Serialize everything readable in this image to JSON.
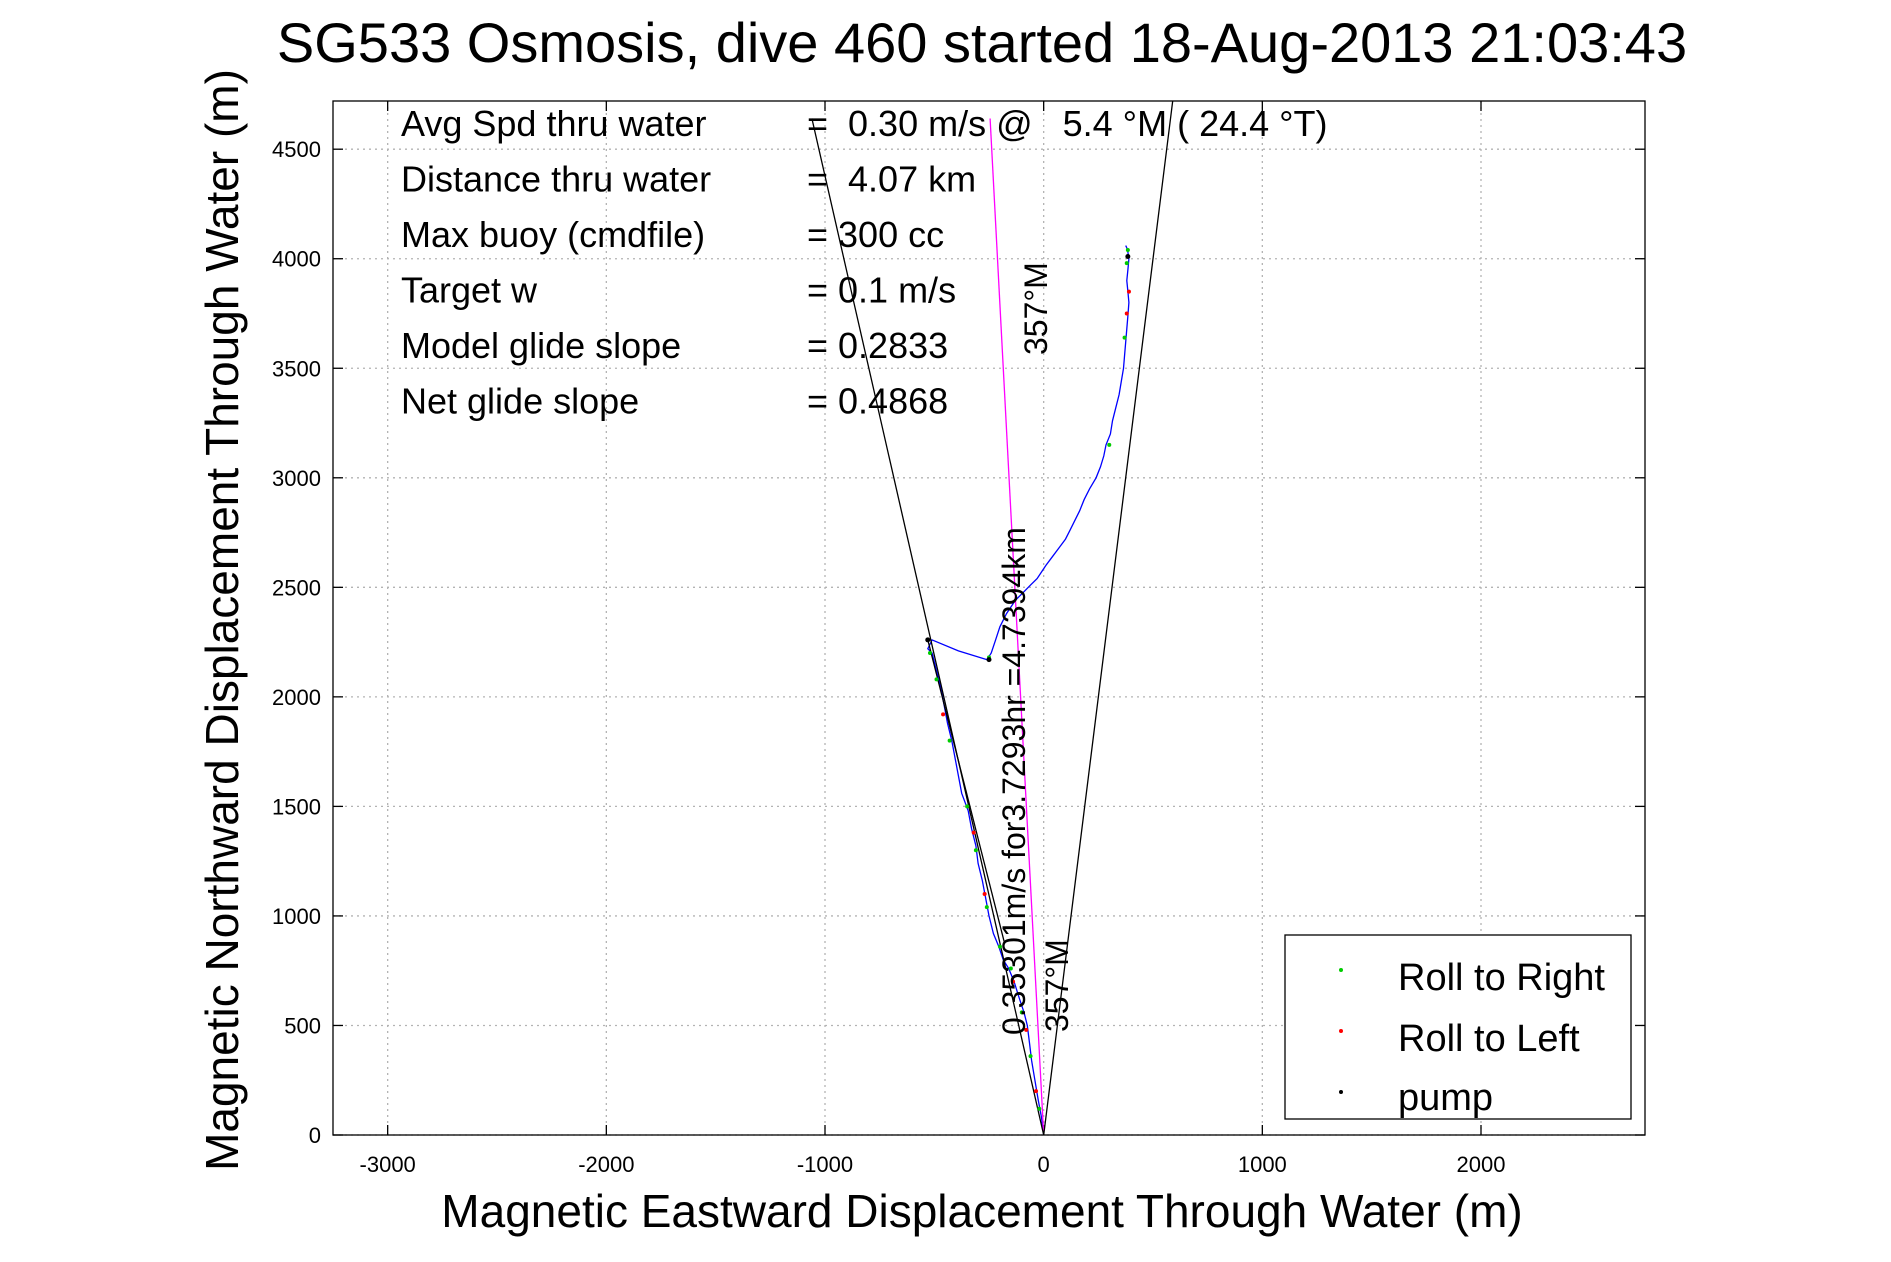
{
  "chart_data": {
    "type": "line",
    "title": "SG533 Osmosis, dive 460 started 18-Aug-2013 21:03:43",
    "xlabel": "Magnetic Eastward Displacement Through Water (m)",
    "ylabel": "Magnetic Northward Displacement Through Water (m)",
    "xlim": [
      -3250,
      2750
    ],
    "ylim": [
      0,
      4720
    ],
    "xticks": [
      -3000,
      -2000,
      -1000,
      0,
      1000,
      2000
    ],
    "yticks": [
      0,
      500,
      1000,
      1500,
      2000,
      2500,
      3000,
      3500,
      4000,
      4500
    ],
    "xtick_labels": [
      "-3000",
      "-2000",
      "-1000",
      "0",
      "1000",
      "2000"
    ],
    "ytick_labels": [
      "0",
      "500",
      "1000",
      "1500",
      "2000",
      "2500",
      "3000",
      "3500",
      "4000",
      "4500"
    ],
    "grid": true,
    "legend_position": "bottom-right",
    "stats": [
      {
        "label": "Avg Spd thru water",
        "value": "=  0.30 m/s @   5.4 °M ( 24.4 °T)"
      },
      {
        "label": "Distance thru water",
        "value": "=  4.07 km"
      },
      {
        "label": "Max buoy (cmdfile)",
        "value": "= 300 cc"
      },
      {
        "label": "Target w",
        "value": "= 0.1 m/s"
      },
      {
        "label": "Model glide slope",
        "value": "= 0.2833"
      },
      {
        "label": "Net glide slope",
        "value": "= 0.4868"
      }
    ],
    "annotations": {
      "current_label": "0.35301m/s for3.7293hr =4.7394km",
      "heading_upper": "357°M",
      "heading_lower": "357°M"
    },
    "legend": [
      {
        "name": "Roll to Right",
        "color": "#00cc00"
      },
      {
        "name": "Roll to Left",
        "color": "#ff0000"
      },
      {
        "name": "pump",
        "color": "#000000"
      }
    ],
    "colors": {
      "track": "#0000ff",
      "current_vector": "#ff00ff",
      "guide_lines": "#000000"
    },
    "series": [
      {
        "color": "#0000ff",
        "x": [
          0,
          -10,
          -25,
          -40,
          -55,
          -65,
          -75,
          -90,
          -110,
          -135,
          -160,
          -185,
          -205,
          -230,
          -250,
          -265,
          -280,
          -300,
          -310,
          -330,
          -345,
          -375,
          -390,
          -405,
          -420,
          -440,
          -455,
          -470,
          -490,
          -510,
          -530,
          -510,
          -390,
          -260,
          -240,
          -220,
          -200,
          -170,
          -130,
          -90,
          -60,
          -30,
          -10,
          10,
          40,
          70,
          100,
          120,
          140,
          165,
          185,
          210,
          240,
          260,
          275,
          285,
          305,
          315,
          330,
          345,
          355,
          365,
          370,
          375,
          380,
          385,
          390,
          385,
          380,
          385,
          390,
          385,
          380,
          375
        ],
        "y": [
          0,
          80,
          160,
          250,
          340,
          420,
          500,
          560,
          620,
          700,
          760,
          800,
          860,
          920,
          1000,
          1080,
          1160,
          1240,
          1320,
          1400,
          1480,
          1560,
          1640,
          1720,
          1800,
          1880,
          1960,
          2040,
          2120,
          2200,
          2220,
          2260,
          2210,
          2170,
          2200,
          2260,
          2320,
          2380,
          2440,
          2480,
          2510,
          2540,
          2570,
          2600,
          2640,
          2680,
          2720,
          2760,
          2800,
          2850,
          2900,
          2950,
          3000,
          3050,
          3100,
          3150,
          3200,
          3260,
          3320,
          3380,
          3440,
          3500,
          3560,
          3620,
          3680,
          3740,
          3800,
          3850,
          3900,
          3950,
          4000,
          4030,
          4050,
          4060
        ]
      },
      {
        "color": "#ff00ff",
        "x": [
          0,
          -245
        ],
        "y": [
          0,
          4640
        ]
      },
      {
        "color": "#000000",
        "x": [
          -1060,
          0,
          590
        ],
        "y": [
          4640,
          0,
          4720
        ]
      },
      {
        "color": "#000000",
        "x": [
          -530,
          -180
        ],
        "y": [
          2260,
          880
        ]
      }
    ],
    "roll_right_points": {
      "x": [
        -20,
        -60,
        -100,
        -150,
        -200,
        -260,
        -310,
        -350,
        -430,
        -490,
        -520,
        -250,
        300,
        370,
        380,
        385
      ],
      "y": [
        120,
        360,
        560,
        760,
        860,
        1040,
        1300,
        1500,
        1800,
        2080,
        2200,
        2180,
        3150,
        3640,
        3980,
        4040
      ]
    },
    "roll_left_points": {
      "x": [
        -35,
        -80,
        -140,
        -270,
        -320,
        -460,
        380,
        390
      ],
      "y": [
        200,
        480,
        700,
        1100,
        1380,
        1920,
        3750,
        3850
      ]
    },
    "pump_points": {
      "x": [
        -530,
        -250,
        385
      ],
      "y": [
        2260,
        2170,
        4010
      ]
    }
  }
}
